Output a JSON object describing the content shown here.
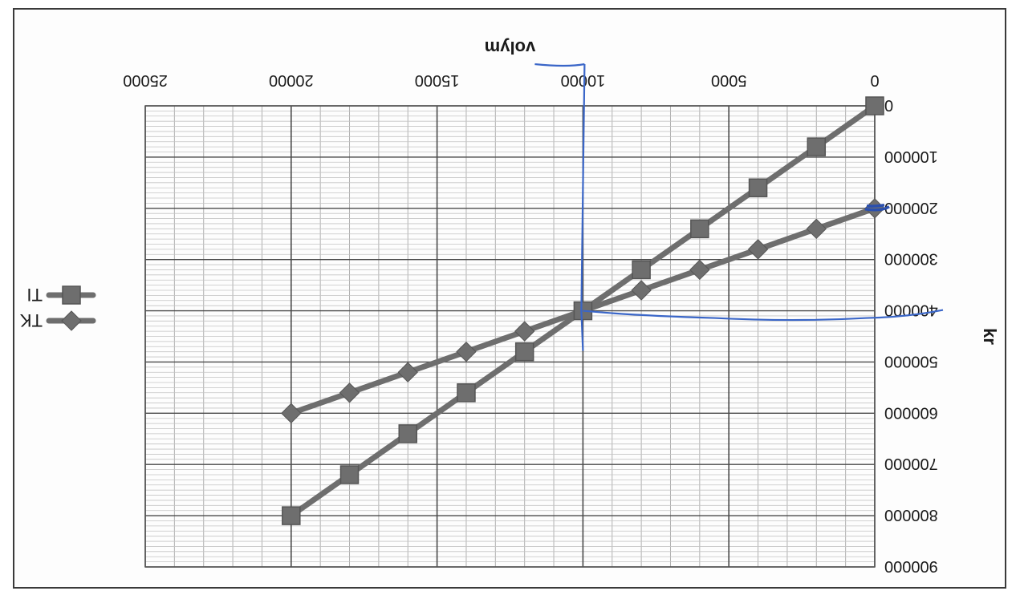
{
  "chart_data": {
    "type": "line",
    "orientation": "rotated-180",
    "x_axis": {
      "label": "volym",
      "range": [
        0,
        25000
      ],
      "ticks": [
        0,
        5000,
        10000,
        15000,
        20000,
        25000
      ],
      "tick_labels": [
        "0",
        "5000",
        "10000",
        "15000",
        "20000",
        "25000"
      ]
    },
    "y_axis": {
      "label": "kr",
      "range": [
        0,
        900000
      ],
      "ticks": [
        0,
        100000,
        200000,
        300000,
        400000,
        500000,
        600000,
        700000,
        800000,
        900000
      ],
      "tick_labels": [
        "0",
        "100000",
        "200000",
        "300000",
        "400000",
        "500000",
        "600000",
        "700000",
        "800000",
        "900000"
      ]
    },
    "grid": true,
    "legend_position": "right",
    "series": [
      {
        "name": "TK",
        "marker": "diamond",
        "color": "#6e6e6e",
        "points": [
          {
            "x": 0,
            "y": 200000
          },
          {
            "x": 2000,
            "y": 240000
          },
          {
            "x": 4000,
            "y": 280000
          },
          {
            "x": 6000,
            "y": 320000
          },
          {
            "x": 8000,
            "y": 360000
          },
          {
            "x": 10000,
            "y": 400000
          },
          {
            "x": 12000,
            "y": 440000
          },
          {
            "x": 14000,
            "y": 480000
          },
          {
            "x": 16000,
            "y": 520000
          },
          {
            "x": 18000,
            "y": 560000
          },
          {
            "x": 20000,
            "y": 600000
          }
        ]
      },
      {
        "name": "TI",
        "marker": "square",
        "color": "#6e6e6e",
        "points": [
          {
            "x": 0,
            "y": 0
          },
          {
            "x": 2000,
            "y": 80000
          },
          {
            "x": 4000,
            "y": 160000
          },
          {
            "x": 6000,
            "y": 240000
          },
          {
            "x": 8000,
            "y": 320000
          },
          {
            "x": 10000,
            "y": 400000
          },
          {
            "x": 12000,
            "y": 480000
          },
          {
            "x": 14000,
            "y": 560000
          },
          {
            "x": 16000,
            "y": 640000
          },
          {
            "x": 18000,
            "y": 720000
          },
          {
            "x": 20000,
            "y": 800000
          }
        ]
      }
    ],
    "annotations": [
      {
        "type": "hand-drawn-vertical-line",
        "x": 10000,
        "color": "#3a66c8"
      },
      {
        "type": "hand-drawn-horizontal-line",
        "y": 400000,
        "color": "#3a66c8"
      },
      {
        "type": "hand-drawn-mark",
        "x": 0,
        "y": 200000,
        "color": "#3a66c8"
      }
    ]
  }
}
